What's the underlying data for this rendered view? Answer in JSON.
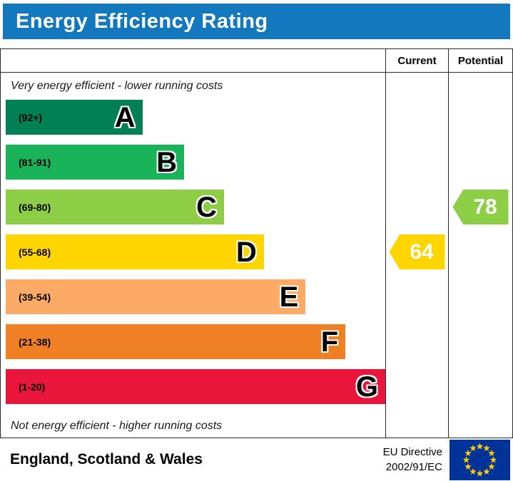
{
  "title": "Energy Efficiency Rating",
  "columns": {
    "current": "Current",
    "potential": "Potential"
  },
  "top_note": "Very energy efficient - lower running costs",
  "bottom_note": "Not energy efficient - higher running costs",
  "footer": {
    "region": "England, Scotland & Wales",
    "directive_line1": "EU Directive",
    "directive_line2": "2002/91/EC"
  },
  "colors": {
    "header_bg": "#1478be",
    "border": "#2b2b2b",
    "eu_flag_blue": "#003399",
    "eu_star_yellow": "#ffcc00"
  },
  "chart_data": {
    "type": "bar",
    "title": "Energy Efficiency Rating",
    "categories": [
      "A",
      "B",
      "C",
      "D",
      "E",
      "F",
      "G"
    ],
    "bands": [
      {
        "letter": "A",
        "range": "(92+)",
        "color": "#008054",
        "width_pct": 36
      },
      {
        "letter": "B",
        "range": "(81-91)",
        "color": "#19b459",
        "width_pct": 47
      },
      {
        "letter": "C",
        "range": "(69-80)",
        "color": "#8dce46",
        "width_pct": 57.5
      },
      {
        "letter": "D",
        "range": "(55-68)",
        "color": "#ffd500",
        "width_pct": 68
      },
      {
        "letter": "E",
        "range": "(39-54)",
        "color": "#fcaa65",
        "width_pct": 79
      },
      {
        "letter": "F",
        "range": "(21-38)",
        "color": "#ef8023",
        "width_pct": 89.5
      },
      {
        "letter": "G",
        "range": "(1-20)",
        "color": "#e9153b",
        "width_pct": 100
      }
    ],
    "current": {
      "value": 64,
      "band": "D",
      "color": "#ffd500"
    },
    "potential": {
      "value": 78,
      "band": "C",
      "color": "#8dce46"
    }
  }
}
